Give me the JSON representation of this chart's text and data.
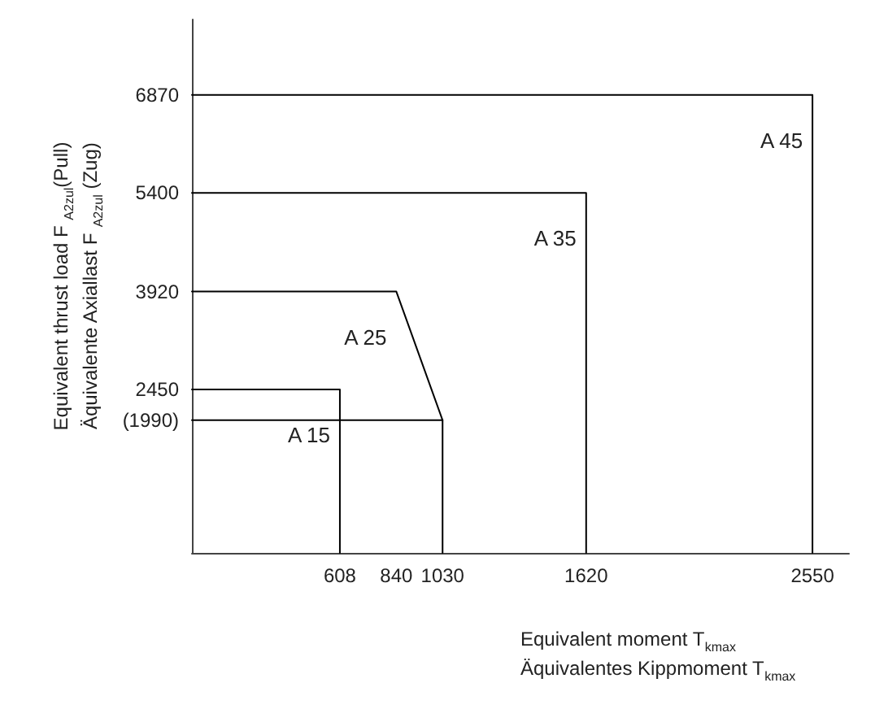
{
  "chart_data": {
    "type": "line",
    "xlabel": "Equivalent moment T$_{kmax}$\nÄquivalentes Kippmoment T$_{kmax}$",
    "ylabel": "Equivalent thrust load F $_{A2zul}$(Pull)\nÄquivalente Axiallast F $_{A2zul}$ (Zug)",
    "xlim": [
      0,
      2700
    ],
    "ylim": [
      0,
      8000
    ],
    "xticks": [
      608,
      840,
      1030,
      1620,
      2550
    ],
    "yticks": [
      {
        "value": 1990,
        "label": "(1990)"
      },
      2450,
      3920,
      5400,
      6870
    ],
    "grid": false,
    "legend": false,
    "marker": "none",
    "line_style": "solid",
    "series": [
      {
        "name": "A 15",
        "color": "#000000",
        "x": [
          0,
          608,
          608
        ],
        "values": [
          2450,
          2450,
          0
        ]
      },
      {
        "name": "A 25",
        "color": "#000000",
        "x": [
          0,
          840,
          1030,
          1030
        ],
        "values": [
          3920,
          3920,
          1990,
          0
        ]
      },
      {
        "color": "#000000",
        "x": [
          0,
          1030
        ],
        "values": [
          1990,
          1990
        ]
      },
      {
        "name": "A 35",
        "color": "#000000",
        "x": [
          0,
          1620,
          1620
        ],
        "values": [
          5400,
          5400,
          0
        ]
      },
      {
        "name": "A 45",
        "color": "#000000",
        "x": [
          0,
          2550,
          2550
        ],
        "values": [
          6870,
          6870,
          0
        ]
      }
    ]
  }
}
